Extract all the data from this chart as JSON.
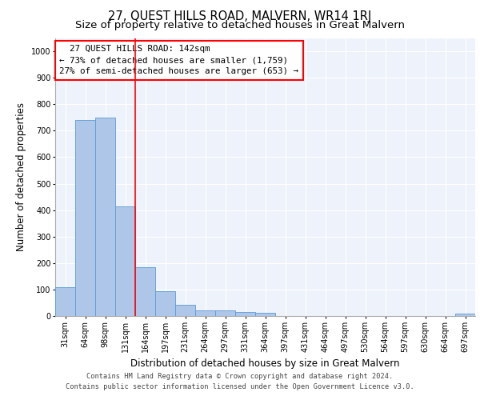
{
  "title": "27, QUEST HILLS ROAD, MALVERN, WR14 1RJ",
  "subtitle": "Size of property relative to detached houses in Great Malvern",
  "xlabel": "Distribution of detached houses by size in Great Malvern",
  "ylabel": "Number of detached properties",
  "footer_line1": "Contains HM Land Registry data © Crown copyright and database right 2024.",
  "footer_line2": "Contains public sector information licensed under the Open Government Licence v3.0.",
  "categories": [
    "31sqm",
    "64sqm",
    "98sqm",
    "131sqm",
    "164sqm",
    "197sqm",
    "231sqm",
    "264sqm",
    "297sqm",
    "331sqm",
    "364sqm",
    "397sqm",
    "431sqm",
    "464sqm",
    "497sqm",
    "530sqm",
    "564sqm",
    "597sqm",
    "630sqm",
    "664sqm",
    "697sqm"
  ],
  "values": [
    110,
    740,
    750,
    415,
    185,
    95,
    42,
    22,
    22,
    15,
    12,
    0,
    0,
    0,
    0,
    0,
    0,
    0,
    0,
    0,
    8
  ],
  "bar_color": "#aec6e8",
  "bar_edge_color": "#5b9bd5",
  "annotation_text": "  27 QUEST HILLS ROAD: 142sqm\n← 73% of detached houses are smaller (1,759)\n27% of semi-detached houses are larger (653) →",
  "annotation_box_color": "white",
  "annotation_box_edge_color": "red",
  "vline_x": 3.5,
  "vline_color": "red",
  "ylim": [
    0,
    1050
  ],
  "yticks": [
    0,
    100,
    200,
    300,
    400,
    500,
    600,
    700,
    800,
    900,
    1000
  ],
  "background_color": "#eef2fa",
  "grid_color": "white",
  "title_fontsize": 10.5,
  "subtitle_fontsize": 9.5,
  "tick_fontsize": 7,
  "ylabel_fontsize": 8.5,
  "xlabel_fontsize": 8.5,
  "annotation_fontsize": 7.8,
  "footer_fontsize": 6.2
}
